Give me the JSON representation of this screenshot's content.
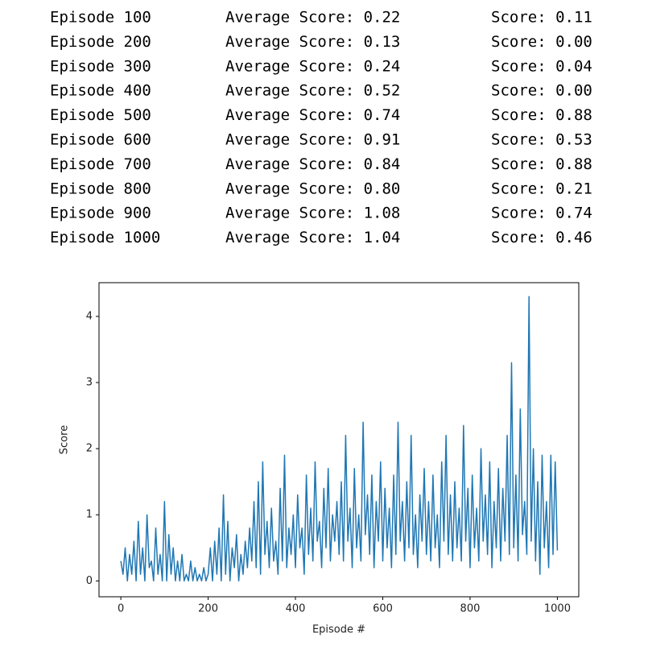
{
  "log": {
    "rows": [
      [
        "Episode 100",
        "Average Score: 0.22",
        "Score: 0.11"
      ],
      [
        "Episode 200",
        "Average Score: 0.13",
        "Score: 0.00"
      ],
      [
        "Episode 300",
        "Average Score: 0.24",
        "Score: 0.04"
      ],
      [
        "Episode 400",
        "Average Score: 0.52",
        "Score: 0.00"
      ],
      [
        "Episode 500",
        "Average Score: 0.74",
        "Score: 0.88"
      ],
      [
        "Episode 600",
        "Average Score: 0.91",
        "Score: 0.53"
      ],
      [
        "Episode 700",
        "Average Score: 0.84",
        "Score: 0.88"
      ],
      [
        "Episode 800",
        "Average Score: 0.80",
        "Score: 0.21"
      ],
      [
        "Episode 900",
        "Average Score: 1.08",
        "Score: 0.74"
      ],
      [
        "Episode 1000",
        "Average Score: 1.04",
        "Score: 0.46"
      ]
    ]
  },
  "chart_data": {
    "type": "line",
    "xlabel": "Episode #",
    "ylabel": "Score",
    "color": "#1f77b4",
    "xlim": [
      -50,
      1049
    ],
    "ylim": [
      -0.24,
      4.51
    ],
    "xticks": [
      0,
      200,
      400,
      600,
      800,
      1000
    ],
    "yticks": [
      0,
      1,
      2,
      3,
      4
    ],
    "x": [
      0,
      5,
      10,
      15,
      20,
      25,
      30,
      35,
      40,
      45,
      50,
      55,
      60,
      65,
      70,
      75,
      80,
      85,
      90,
      95,
      100,
      105,
      110,
      115,
      120,
      125,
      130,
      135,
      140,
      145,
      150,
      155,
      160,
      165,
      170,
      175,
      180,
      185,
      190,
      195,
      200,
      205,
      210,
      215,
      220,
      225,
      230,
      235,
      240,
      245,
      250,
      255,
      260,
      265,
      270,
      275,
      280,
      285,
      290,
      295,
      300,
      305,
      310,
      315,
      320,
      325,
      330,
      335,
      340,
      345,
      350,
      355,
      360,
      365,
      370,
      375,
      380,
      385,
      390,
      395,
      400,
      405,
      410,
      415,
      420,
      425,
      430,
      435,
      440,
      445,
      450,
      455,
      460,
      465,
      470,
      475,
      480,
      485,
      490,
      495,
      500,
      505,
      510,
      515,
      520,
      525,
      530,
      535,
      540,
      545,
      550,
      555,
      560,
      565,
      570,
      575,
      580,
      585,
      590,
      595,
      600,
      605,
      610,
      615,
      620,
      625,
      630,
      635,
      640,
      645,
      650,
      655,
      660,
      665,
      670,
      675,
      680,
      685,
      690,
      695,
      700,
      705,
      710,
      715,
      720,
      725,
      730,
      735,
      740,
      745,
      750,
      755,
      760,
      765,
      770,
      775,
      780,
      785,
      790,
      795,
      800,
      805,
      810,
      815,
      820,
      825,
      830,
      835,
      840,
      845,
      850,
      855,
      860,
      865,
      870,
      875,
      880,
      885,
      890,
      895,
      900,
      905,
      910,
      915,
      920,
      925,
      930,
      935,
      940,
      945,
      950,
      955,
      960,
      965,
      970,
      975,
      980,
      985,
      990,
      995,
      1000
    ],
    "values": [
      0.3,
      0.1,
      0.5,
      0.0,
      0.4,
      0.1,
      0.6,
      0.0,
      0.9,
      0.1,
      0.5,
      0.0,
      1.0,
      0.2,
      0.3,
      0.0,
      0.8,
      0.1,
      0.4,
      0.0,
      1.2,
      0.0,
      0.7,
      0.1,
      0.5,
      0.0,
      0.3,
      0.0,
      0.4,
      0.0,
      0.1,
      0.0,
      0.3,
      0.0,
      0.2,
      0.0,
      0.1,
      0.0,
      0.2,
      0.0,
      0.1,
      0.5,
      0.0,
      0.6,
      0.1,
      0.8,
      0.0,
      1.3,
      0.1,
      0.9,
      0.0,
      0.5,
      0.2,
      0.7,
      0.0,
      0.4,
      0.1,
      0.6,
      0.2,
      0.8,
      0.3,
      1.2,
      0.2,
      1.5,
      0.1,
      1.8,
      0.4,
      0.9,
      0.2,
      1.1,
      0.3,
      0.6,
      0.1,
      1.4,
      0.3,
      1.9,
      0.2,
      0.8,
      0.4,
      1.0,
      0.2,
      1.3,
      0.5,
      0.8,
      0.1,
      1.6,
      0.4,
      1.1,
      0.3,
      1.8,
      0.6,
      0.9,
      0.2,
      1.4,
      0.5,
      1.7,
      0.3,
      1.0,
      0.6,
      1.2,
      0.4,
      1.5,
      0.3,
      2.2,
      0.6,
      1.1,
      0.2,
      1.7,
      0.5,
      1.0,
      0.3,
      2.4,
      0.7,
      1.3,
      0.4,
      1.6,
      0.2,
      1.2,
      0.6,
      1.8,
      0.3,
      1.4,
      0.5,
      1.1,
      0.2,
      1.6,
      0.4,
      2.4,
      0.6,
      1.2,
      0.3,
      1.5,
      0.5,
      2.2,
      0.4,
      1.0,
      0.2,
      1.3,
      0.6,
      1.7,
      0.4,
      1.2,
      0.3,
      1.6,
      0.5,
      1.0,
      0.2,
      1.8,
      0.6,
      2.2,
      0.4,
      1.3,
      0.3,
      1.5,
      0.5,
      1.1,
      0.3,
      2.35,
      0.6,
      1.4,
      0.2,
      1.6,
      0.5,
      1.1,
      0.3,
      2.0,
      0.6,
      1.3,
      0.4,
      1.8,
      0.2,
      1.2,
      0.5,
      1.7,
      0.3,
      1.4,
      0.6,
      2.2,
      0.4,
      3.3,
      0.5,
      1.6,
      0.3,
      2.6,
      0.7,
      1.2,
      0.4,
      4.3,
      0.6,
      2.0,
      0.3,
      1.5,
      0.1,
      1.9,
      0.5,
      1.2,
      0.2,
      1.9,
      0.4,
      1.8,
      0.46
    ]
  }
}
